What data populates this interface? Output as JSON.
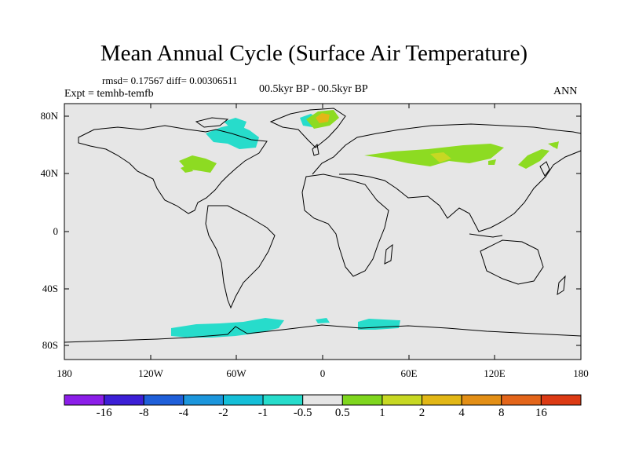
{
  "title": "Mean Annual Cycle (Surface Air Temperature)",
  "stats": "rmsd= 0.17567 diff= 0.00306511",
  "experiment": "Expt = temhb-temfb",
  "period": "00.5kyr BP - 00.5kyr BP",
  "season": "ANN",
  "y_axis": {
    "ticks": [
      {
        "label": "80N",
        "lat": 80
      },
      {
        "label": "40N",
        "lat": 40
      },
      {
        "label": "0",
        "lat": 0
      },
      {
        "label": "40S",
        "lat": -40
      },
      {
        "label": "80S",
        "lat": -80
      }
    ]
  },
  "x_axis": {
    "ticks": [
      {
        "label": "180",
        "lon": -180
      },
      {
        "label": "120W",
        "lon": -120
      },
      {
        "label": "60W",
        "lon": -60
      },
      {
        "label": "0",
        "lon": 0
      },
      {
        "label": "60E",
        "lon": 60
      },
      {
        "label": "120E",
        "lon": 120
      },
      {
        "label": "180",
        "lon": 180
      }
    ]
  },
  "colorbar": {
    "colors": [
      "#8b1ee8",
      "#3c1fd6",
      "#1f5fd9",
      "#1c96dc",
      "#15bfd8",
      "#27dccb",
      "#e5e5e5",
      "#7fd61e",
      "#c7d823",
      "#e2b716",
      "#e38f16",
      "#e3651a",
      "#dc3a14"
    ],
    "labels": [
      "-16",
      "-8",
      "-4",
      "-2",
      "-1",
      "-0.5",
      "0.5",
      "1",
      "2",
      "4",
      "8",
      "16"
    ]
  },
  "colors": {
    "background": "#e6e6e6",
    "cyan": "#27dccb",
    "green": "#8ddb22",
    "yellow": "#c7d823",
    "orange": "#e2b716"
  }
}
